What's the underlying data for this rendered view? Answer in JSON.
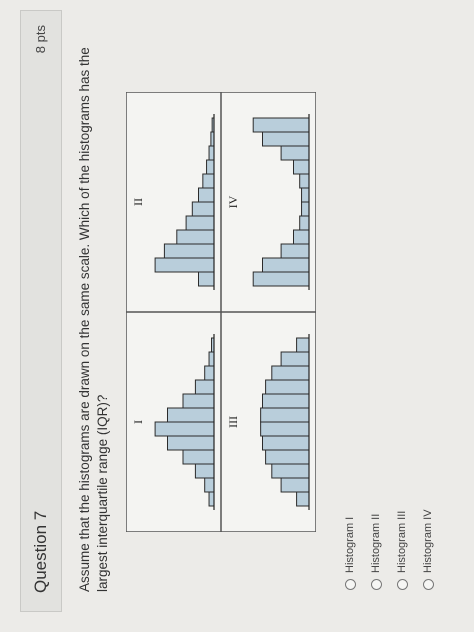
{
  "header": {
    "title": "Question 7",
    "points": "8 pts"
  },
  "question": "Assume that the histograms are drawn on the same scale. Which of the histograms has the largest interquartile range (IQR)?",
  "histograms": {
    "labels": [
      "I",
      "II",
      "III",
      "IV"
    ]
  },
  "options": [
    "Histogram I",
    "Histogram II",
    "Histogram III",
    "Histogram IV"
  ]
}
